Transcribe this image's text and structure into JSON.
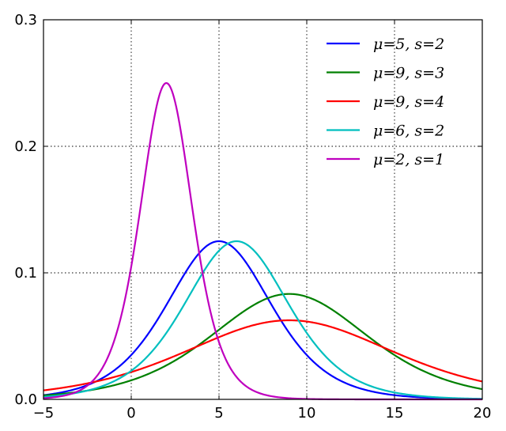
{
  "chart_data": {
    "type": "line",
    "title": "",
    "xlabel": "",
    "ylabel": "",
    "xlim": [
      -5,
      20
    ],
    "ylim": [
      0,
      0.3
    ],
    "x_ticks": [
      -5,
      0,
      5,
      10,
      15,
      20
    ],
    "x_tick_labels": [
      "−5",
      "0",
      "5",
      "10",
      "15",
      "20"
    ],
    "y_ticks": [
      0.0,
      0.1,
      0.2,
      0.3
    ],
    "y_tick_labels": [
      "0.0",
      "0.1",
      "0.2",
      "0.3"
    ],
    "grid": true,
    "legend_position": "top-right",
    "distribution": "logistic",
    "series": [
      {
        "name": "μ=5, s=2",
        "mu": 5,
        "s": 2,
        "color": "#0000ff"
      },
      {
        "name": "μ=9, s=3",
        "mu": 9,
        "s": 3,
        "color": "#008000"
      },
      {
        "name": "μ=9, s=4",
        "mu": 9,
        "s": 4,
        "color": "#ff0000"
      },
      {
        "name": "μ=6, s=2",
        "mu": 6,
        "s": 2,
        "color": "#00bfbf"
      },
      {
        "name": "μ=2, s=1",
        "mu": 2,
        "s": 1,
        "color": "#bf00bf"
      }
    ]
  }
}
